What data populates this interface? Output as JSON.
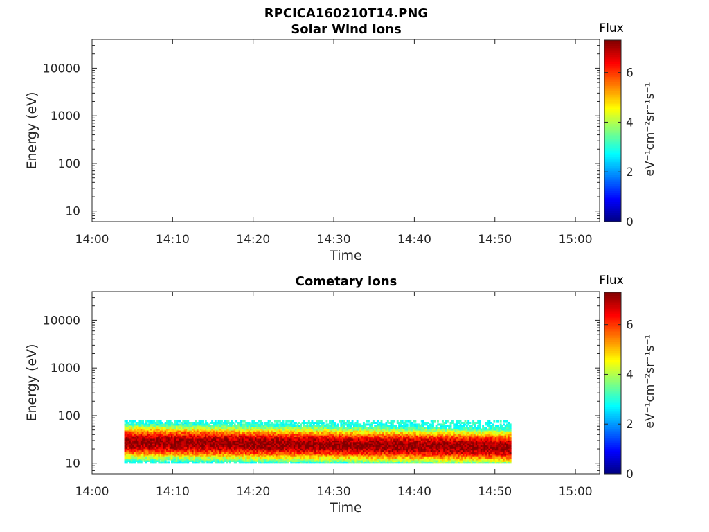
{
  "figure": {
    "title": "RPCICA160210T14.PNG"
  },
  "chart_data": [
    {
      "type": "heatmap",
      "title": "Solar Wind Ions",
      "xlabel": "Time",
      "ylabel": "Energy (eV)",
      "x_ticks": [
        "14:00",
        "14:10",
        "14:20",
        "14:30",
        "14:40",
        "14:50",
        "15:00"
      ],
      "x_range": [
        "14:00",
        "15:03"
      ],
      "y_scale": "log",
      "y_ticks": [
        10,
        100,
        1000,
        10000
      ],
      "y_tick_labels": [
        "10",
        "100",
        "1000",
        "10000"
      ],
      "y_range": [
        6,
        40000
      ],
      "colorbar": {
        "label": "Flux",
        "units": "eV⁻¹cm⁻²sr⁻¹s⁻¹",
        "ticks": [
          "0",
          "2",
          "4",
          "6"
        ],
        "range": [
          0,
          7.3
        ],
        "colormap": "jet"
      },
      "data": []
    },
    {
      "type": "heatmap",
      "title": "Cometary Ions",
      "xlabel": "Time",
      "ylabel": "Energy (eV)",
      "x_ticks": [
        "14:00",
        "14:10",
        "14:20",
        "14:30",
        "14:40",
        "14:50",
        "15:00"
      ],
      "x_range": [
        "14:00",
        "15:03"
      ],
      "y_scale": "log",
      "y_ticks": [
        10,
        100,
        1000,
        10000
      ],
      "y_tick_labels": [
        "10",
        "100",
        "1000",
        "10000"
      ],
      "y_range": [
        6,
        40000
      ],
      "colorbar": {
        "label": "Flux",
        "units": "eV⁻¹cm⁻²sr⁻¹s⁻¹",
        "ticks": [
          "0",
          "2",
          "4",
          "6"
        ],
        "range": [
          0,
          7.3
        ],
        "colormap": "jet"
      },
      "data": {
        "time_start": "14:04",
        "time_end": "14:52",
        "energy_min_eV": 10,
        "energy_max_eV": 80,
        "peak_energy_eV_start": 28,
        "peak_energy_eV_end": 22,
        "peak_flux": 7.2
      }
    }
  ]
}
